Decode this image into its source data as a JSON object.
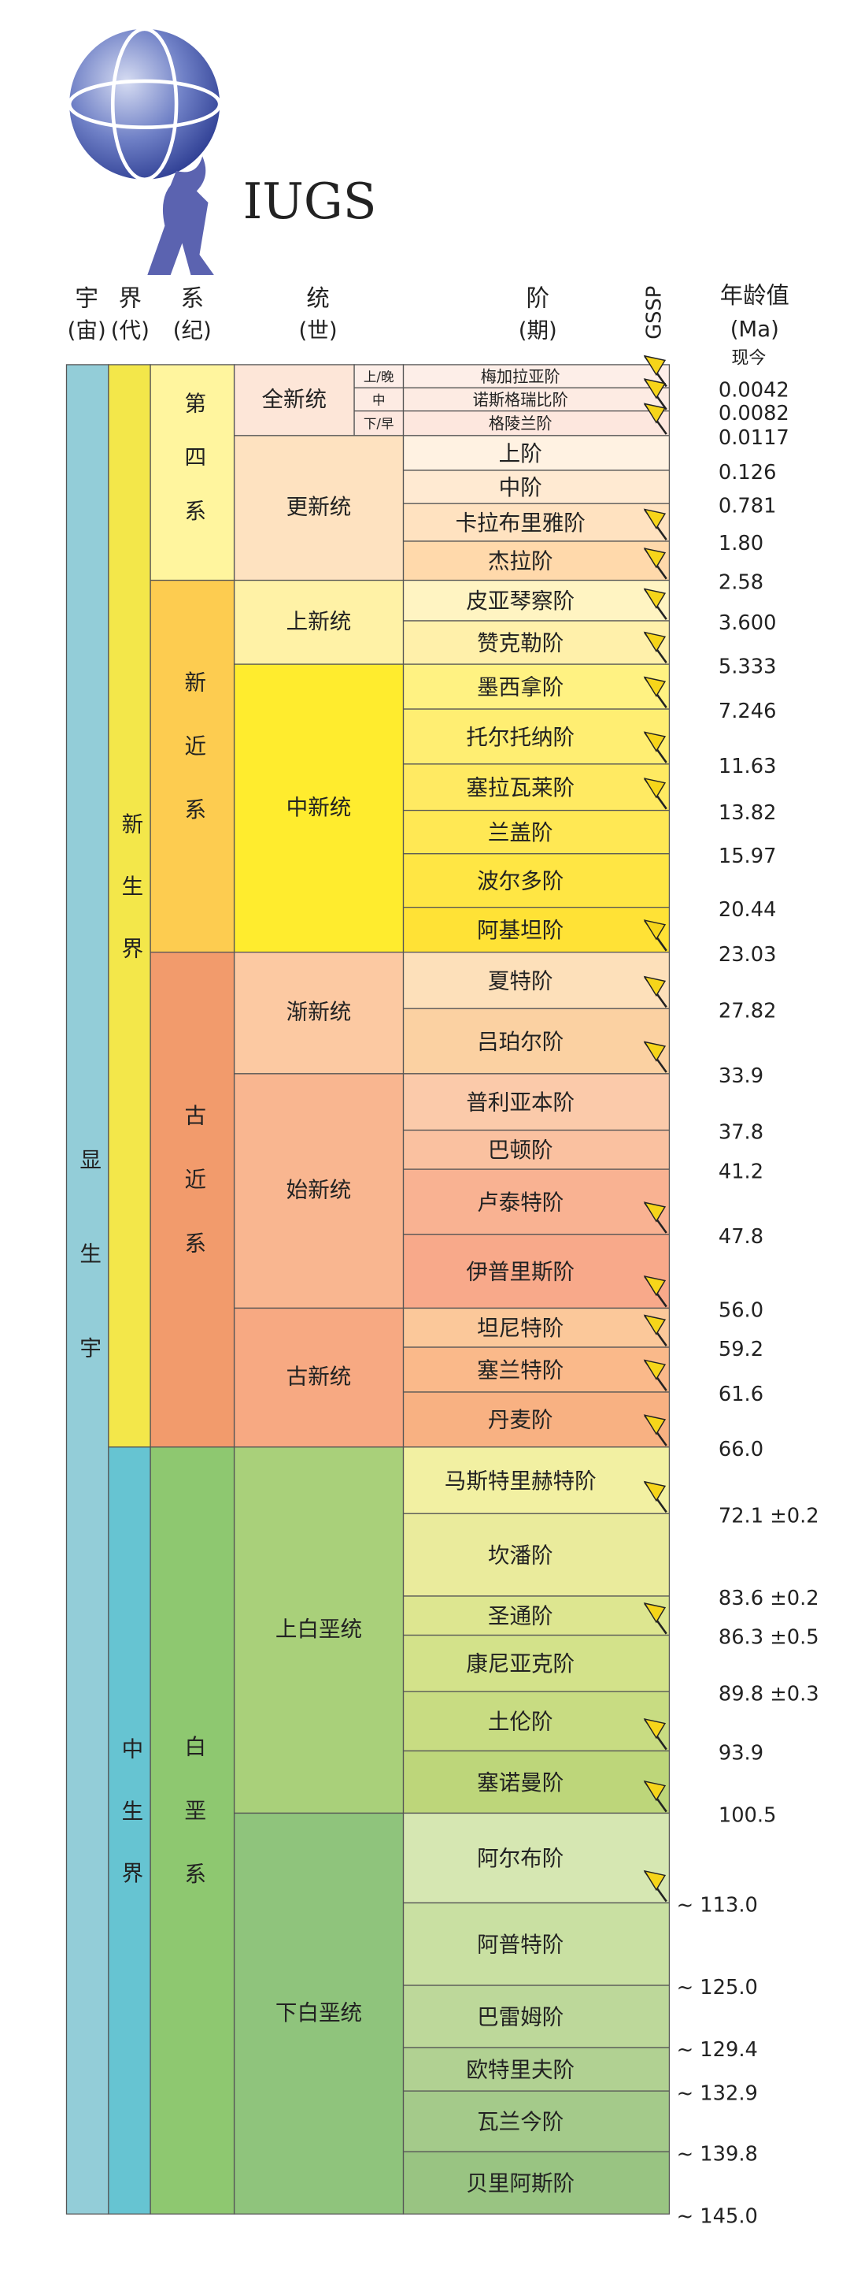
{
  "logo": {
    "text": "IUGS"
  },
  "headers": {
    "eon": {
      "title": "宇",
      "sub": "(宙)"
    },
    "era": {
      "title": "界",
      "sub": "(代)"
    },
    "period": {
      "title": "系",
      "sub": "(纪)"
    },
    "epoch": {
      "title": "统",
      "sub": "(世)"
    },
    "stage": {
      "title": "阶",
      "sub": "(期)"
    },
    "gssp": "GSSP",
    "age": {
      "title": "年龄值",
      "sub": "(Ma)"
    }
  },
  "present": "现今",
  "eon": {
    "name": "显生宇",
    "color": "#93cdd8",
    "eras": [
      {
        "name": "新生界",
        "color": "#f3e74a",
        "periods": [
          {
            "name": "第四系",
            "color": "#fff59e",
            "epochs": [
              {
                "name": "全新统",
                "color": "#fde6d8",
                "stages": [
                  {
                    "sub": "上/晚",
                    "name": "梅加拉亚阶",
                    "age": "0.0042",
                    "gssp": true,
                    "color": "#fdeee8"
                  },
                  {
                    "sub": "中",
                    "name": "诺斯格瑞比阶",
                    "age": "0.0082",
                    "gssp": true,
                    "color": "#fdebe3"
                  },
                  {
                    "sub": "下/早",
                    "name": "格陵兰阶",
                    "age": "0.0117",
                    "gssp": true,
                    "color": "#fde7de"
                  }
                ]
              },
              {
                "name": "更新统",
                "color": "#fee2c0",
                "stages": [
                  {
                    "name": "上阶",
                    "age": "0.126",
                    "gssp": false,
                    "color": "#fff2e2"
                  },
                  {
                    "name": "中阶",
                    "age": "0.781",
                    "gssp": false,
                    "color": "#ffead2"
                  },
                  {
                    "name": "卡拉布里雅阶",
                    "age": "1.80",
                    "gssp": true,
                    "color": "#ffe2c0"
                  },
                  {
                    "name": "杰拉阶",
                    "age": "2.58",
                    "gssp": true,
                    "color": "#ffd9ab"
                  }
                ]
              }
            ]
          },
          {
            "name": "新近系",
            "color": "#fdcc50",
            "epochs": [
              {
                "name": "上新统",
                "color": "#fff2a6",
                "stages": [
                  {
                    "name": "皮亚琴察阶",
                    "age": "3.600",
                    "gssp": true,
                    "color": "#fff4c2"
                  },
                  {
                    "name": "赞克勒阶",
                    "age": "5.333",
                    "gssp": true,
                    "color": "#fff0aa"
                  }
                ]
              },
              {
                "name": "中新统",
                "color": "#ffec2e",
                "stages": [
                  {
                    "name": "墨西拿阶",
                    "age": "7.246",
                    "gssp": true,
                    "color": "#fff282"
                  },
                  {
                    "name": "托尔托纳阶",
                    "age": "11.63",
                    "gssp": true,
                    "color": "#ffee72"
                  },
                  {
                    "name": "塞拉瓦莱阶",
                    "age": "13.82",
                    "gssp": true,
                    "color": "#ffea62"
                  },
                  {
                    "name": "兰盖阶",
                    "age": "15.97",
                    "gssp": false,
                    "color": "#ffe854"
                  },
                  {
                    "name": "波尔多阶",
                    "age": "20.44",
                    "gssp": false,
                    "color": "#ffe644"
                  },
                  {
                    "name": "阿基坦阶",
                    "age": "23.03",
                    "gssp": true,
                    "color": "#ffe236"
                  }
                ]
              }
            ]
          },
          {
            "name": "古近系",
            "color": "#f29b6c",
            "epochs": [
              {
                "name": "渐新统",
                "color": "#fcc9a2",
                "stages": [
                  {
                    "name": "夏特阶",
                    "age": "27.82",
                    "gssp": true,
                    "color": "#fde0ba"
                  },
                  {
                    "name": "吕珀尔阶",
                    "age": "33.9",
                    "gssp": true,
                    "color": "#fbd1a2"
                  }
                ]
              },
              {
                "name": "始新统",
                "color": "#f9b690",
                "stages": [
                  {
                    "name": "普利亚本阶",
                    "age": "37.8",
                    "gssp": false,
                    "color": "#fbcaaa"
                  },
                  {
                    "name": "巴顿阶",
                    "age": "41.2",
                    "gssp": false,
                    "color": "#fac1a0"
                  },
                  {
                    "name": "卢泰特阶",
                    "age": "47.8",
                    "gssp": true,
                    "color": "#f9b292"
                  },
                  {
                    "name": "伊普里斯阶",
                    "age": "56.0",
                    "gssp": true,
                    "color": "#f8a98a"
                  }
                ]
              },
              {
                "name": "古新统",
                "color": "#f7a982",
                "stages": [
                  {
                    "name": "坦尼特阶",
                    "age": "59.2",
                    "gssp": true,
                    "color": "#fbc89a"
                  },
                  {
                    "name": "塞兰特阶",
                    "age": "61.6",
                    "gssp": true,
                    "color": "#fab98a"
                  },
                  {
                    "name": "丹麦阶",
                    "age": "66.0",
                    "gssp": true,
                    "color": "#f8b182"
                  }
                ]
              }
            ]
          }
        ]
      },
      {
        "name": "中生界",
        "color": "#66c4d2",
        "periods": [
          {
            "name": "白垩系",
            "color": "#8ec870",
            "epochs": [
              {
                "name": "上白垩统",
                "color": "#a9d07a",
                "stages": [
                  {
                    "name": "马斯特里赫特阶",
                    "age": "72.1 ±0.2",
                    "gssp": true,
                    "color": "#f2f0a2"
                  },
                  {
                    "name": "坎潘阶",
                    "age": "83.6 ±0.2",
                    "gssp": false,
                    "color": "#eaeb9c"
                  },
                  {
                    "name": "圣通阶",
                    "age": "86.3 ±0.5",
                    "gssp": true,
                    "color": "#dde690"
                  },
                  {
                    "name": "康尼亚克阶",
                    "age": "89.8 ±0.3",
                    "gssp": false,
                    "color": "#d3e28a"
                  },
                  {
                    "name": "土伦阶",
                    "age": "93.9",
                    "gssp": true,
                    "color": "#c8dc82"
                  },
                  {
                    "name": "塞诺曼阶",
                    "age": "100.5",
                    "gssp": true,
                    "color": "#bdd67a"
                  }
                ]
              },
              {
                "name": "下白垩统",
                "color": "#8fc47c",
                "stages": [
                  {
                    "name": "阿尔布阶",
                    "age": "~ 113.0",
                    "gssp": true,
                    "color": "#d6e7b2"
                  },
                  {
                    "name": "阿普特阶",
                    "age": "~ 125.0",
                    "gssp": false,
                    "color": "#c9e0a2"
                  },
                  {
                    "name": "巴雷姆阶",
                    "age": "~ 129.4",
                    "gssp": false,
                    "color": "#bdd89a"
                  },
                  {
                    "name": "欧特里夫阶",
                    "age": "~ 132.9",
                    "gssp": false,
                    "color": "#b1d192"
                  },
                  {
                    "name": "瓦兰今阶",
                    "age": "~ 139.8",
                    "gssp": false,
                    "color": "#a4ca8a"
                  },
                  {
                    "name": "贝里阿斯阶",
                    "age": "~ 145.0",
                    "gssp": false,
                    "color": "#99c482"
                  }
                ]
              }
            ]
          }
        ]
      }
    ]
  }
}
